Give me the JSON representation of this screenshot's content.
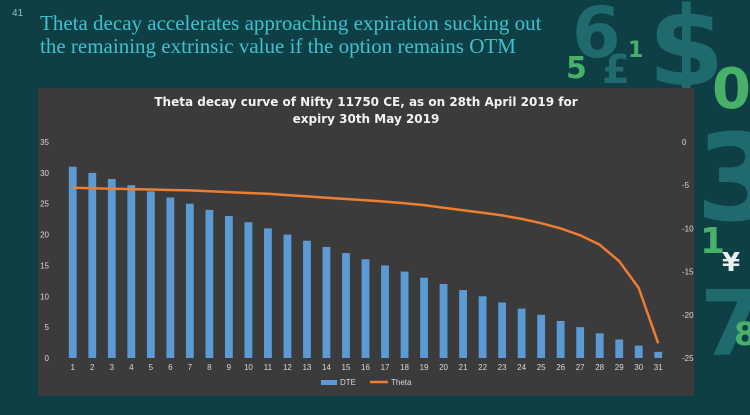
{
  "page": {
    "page_number": "41",
    "headline": "Theta decay accelerates approaching expiration sucking out the remaining extrinsic value if the option remains OTM",
    "background_decorations": [
      "6",
      "£",
      "$",
      "5",
      "1",
      "0",
      "3",
      "1",
      "¥",
      "7",
      "8"
    ]
  },
  "chart_data": {
    "type": "bar+line",
    "title_lines": [
      "Theta decay curve of Nifty 11750 CE, as on 28th April 2019 for",
      "expiry 30th May 2019"
    ],
    "categories": [
      "1",
      "2",
      "3",
      "4",
      "5",
      "6",
      "7",
      "8",
      "9",
      "10",
      "11",
      "12",
      "13",
      "14",
      "15",
      "16",
      "17",
      "18",
      "19",
      "20",
      "21",
      "22",
      "23",
      "24",
      "25",
      "26",
      "27",
      "28",
      "29",
      "30",
      "31"
    ],
    "series": [
      {
        "name": "DTE",
        "type": "bar",
        "axis": "left",
        "color": "#5b9bd5",
        "values": [
          31,
          30,
          29,
          28,
          27,
          26,
          25,
          24,
          23,
          22,
          21,
          20,
          19,
          18,
          17,
          16,
          15,
          14,
          13,
          12,
          11,
          10,
          9,
          8,
          7,
          6,
          5,
          4,
          3,
          2,
          1
        ]
      },
      {
        "name": "Theta",
        "type": "line",
        "axis": "right",
        "color": "#ed7d31",
        "values": [
          -5.3,
          -5.35,
          -5.4,
          -5.45,
          -5.5,
          -5.55,
          -5.6,
          -5.7,
          -5.8,
          -5.9,
          -6.0,
          -6.15,
          -6.3,
          -6.45,
          -6.6,
          -6.75,
          -6.9,
          -7.1,
          -7.3,
          -7.6,
          -7.9,
          -8.2,
          -8.5,
          -8.9,
          -9.4,
          -10.0,
          -10.8,
          -11.9,
          -13.8,
          -16.9,
          -23.3
        ]
      }
    ],
    "y_left": {
      "min": 0,
      "max": 35,
      "ticks": [
        "0",
        "5",
        "10",
        "15",
        "20",
        "25",
        "30",
        "35"
      ]
    },
    "y_right": {
      "min": -25,
      "max": 0,
      "ticks": [
        "0",
        "-5",
        "-10",
        "-15",
        "-20",
        "-25"
      ]
    },
    "grid": false,
    "legend_position": "bottom",
    "colors": {
      "panel": "#3b3b3b",
      "text": "#d9d9d9"
    }
  }
}
